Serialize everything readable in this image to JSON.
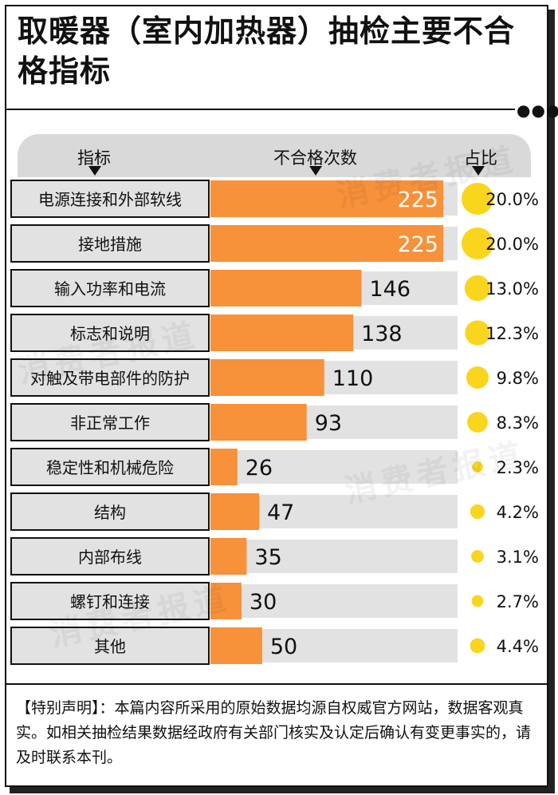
{
  "title": "取暖器（室内加热器）抽检主要不合格指标",
  "headers": {
    "indicator": "指标",
    "count": "不合格次数",
    "share": "占比"
  },
  "watermark": "消费者报道",
  "footnote": "【特别声明】：本篇内容所采用的原始数据均源自权威官方网站，数据客观真实。如相关抽检结果数据经政府有关部门核实及认定后确认有变更事实的，请及时联系本刊。",
  "colors": {
    "bar": "#f7913a",
    "track": "#e2e2e2",
    "label_box": "#e2e2e2",
    "bubble": "#fad51e",
    "band": "#d9d9d9"
  },
  "chart_data": {
    "type": "bar",
    "orientation": "horizontal",
    "categories": [
      "电源连接和外部软线",
      "接地措施",
      "输入功率和电流",
      "标志和说明",
      "对触及带电部件的防护",
      "非正常工作",
      "稳定性和机械危险",
      "结构",
      "内部布线",
      "螺钉和连接",
      "其他"
    ],
    "values": [
      225,
      225,
      146,
      138,
      110,
      93,
      26,
      47,
      35,
      30,
      50
    ],
    "value_labels": [
      "225",
      "225",
      "146",
      "138",
      "110",
      "93",
      "26",
      "47",
      "35",
      "30",
      "50"
    ],
    "shares": [
      20.0,
      20.0,
      13.0,
      12.3,
      9.8,
      8.3,
      2.3,
      4.2,
      3.1,
      2.7,
      4.4
    ],
    "share_labels": [
      "20.0%",
      "20.0%",
      "13.0%",
      "12.3%",
      "9.8%",
      "8.3%",
      "2.3%",
      "4.2%",
      "3.1%",
      "2.7%",
      "4.4%"
    ],
    "xlim": [
      0,
      225
    ],
    "grid": false,
    "legend": "none"
  }
}
